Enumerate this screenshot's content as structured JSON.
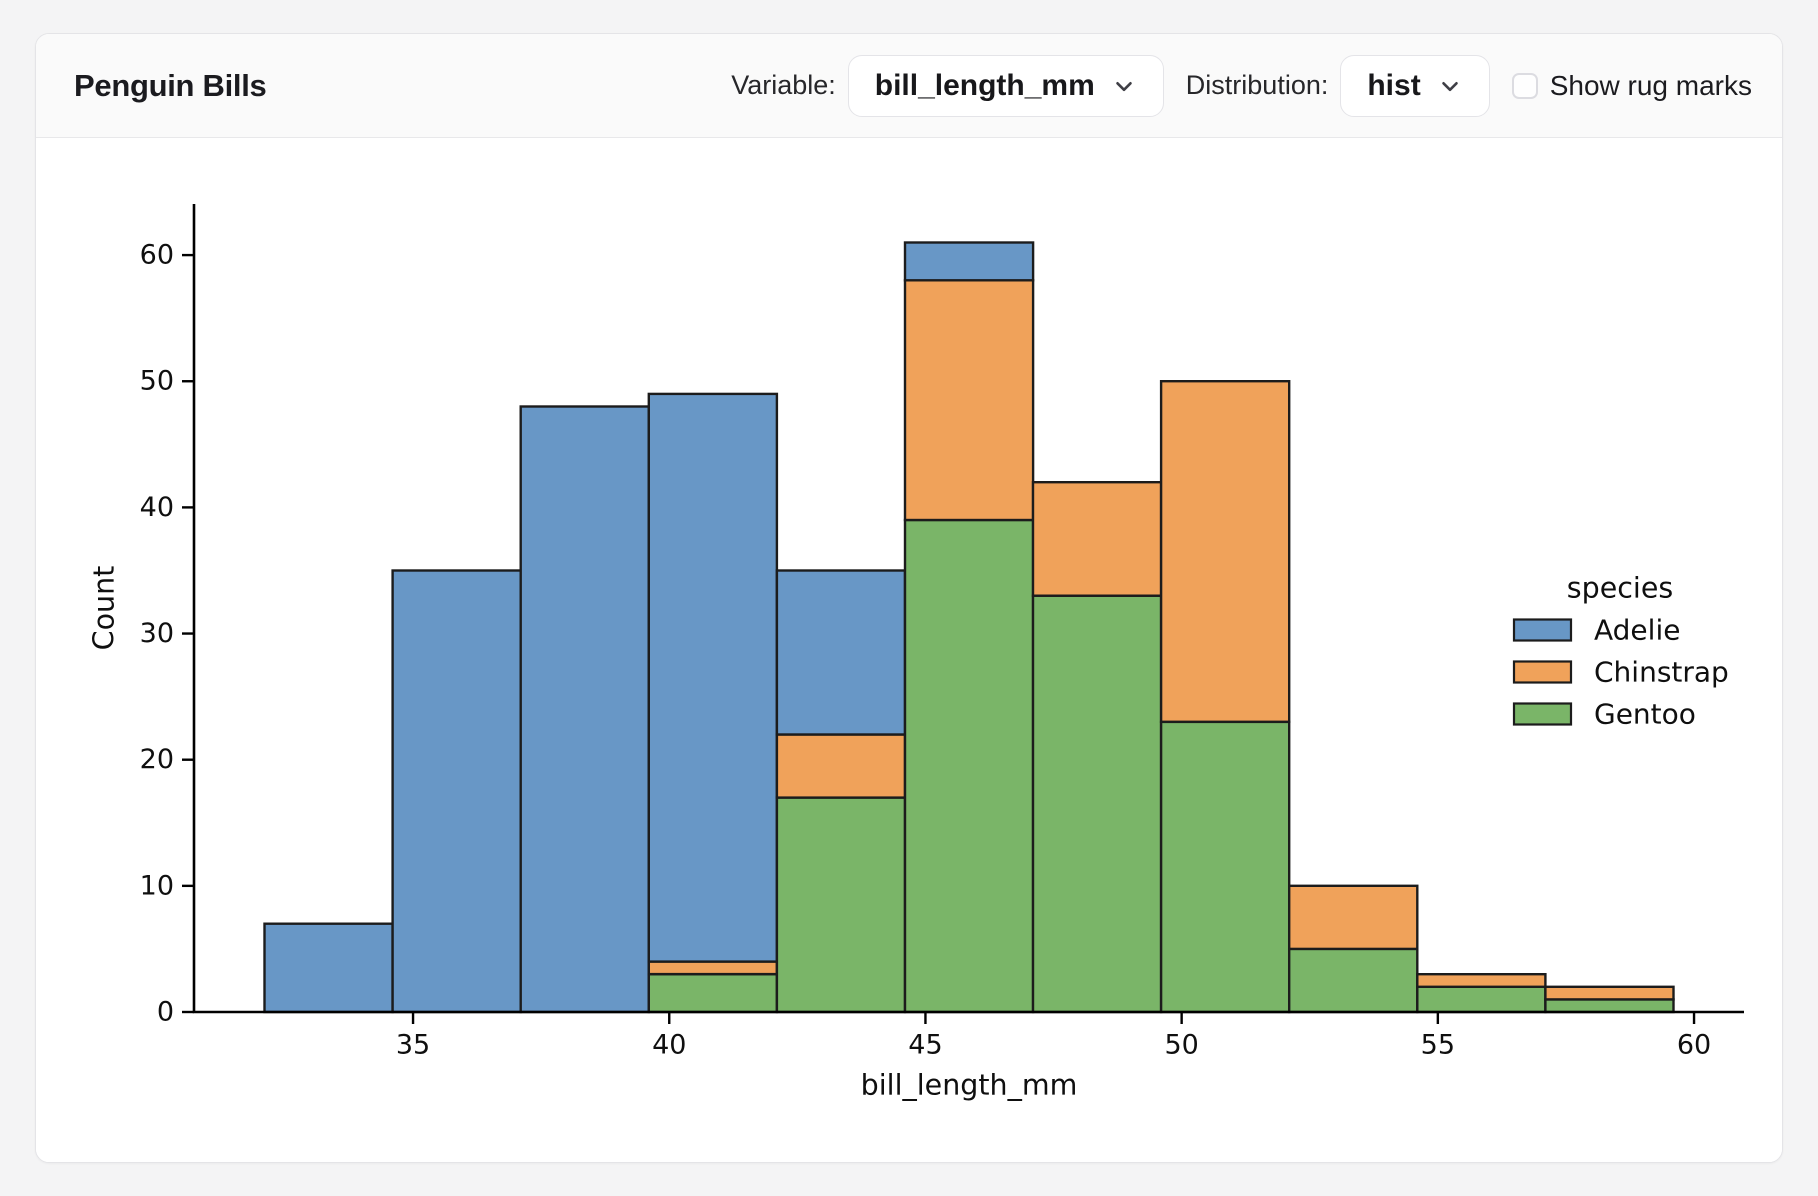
{
  "header": {
    "title": "Penguin Bills",
    "variable_label": "Variable:",
    "variable_value": "bill_length_mm",
    "distribution_label": "Distribution:",
    "distribution_value": "hist",
    "rug_label": "Show rug marks",
    "rug_checked": false
  },
  "theme": {
    "page_background": "#f4f4f5",
    "card_background": "#ffffff",
    "header_background": "#fafafa"
  },
  "chart_data": {
    "type": "bar",
    "subtype": "stacked-histogram",
    "xlabel": "bill_length_mm",
    "ylabel": "Count",
    "grid": false,
    "bin_edges": [
      32.1,
      34.6,
      37.1,
      39.6,
      42.1,
      44.6,
      47.1,
      49.6,
      52.1,
      54.6,
      57.1,
      59.6
    ],
    "series": [
      {
        "name": "Gentoo",
        "color": "#7ab568",
        "values": [
          0,
          0,
          0,
          3,
          17,
          39,
          33,
          23,
          5,
          2,
          1
        ]
      },
      {
        "name": "Chinstrap",
        "color": "#f0a25a",
        "values": [
          0,
          0,
          0,
          1,
          5,
          19,
          9,
          27,
          5,
          1,
          1
        ]
      },
      {
        "name": "Adelie",
        "color": "#6897c6",
        "values": [
          7,
          35,
          48,
          45,
          13,
          3,
          0,
          0,
          0,
          0,
          0
        ]
      }
    ],
    "bin_totals": [
      7,
      35,
      48,
      49,
      35,
      61,
      42,
      50,
      10,
      3,
      2
    ],
    "x_ticks": [
      35,
      40,
      45,
      50,
      55,
      60
    ],
    "y_ticks": [
      0,
      10,
      20,
      30,
      40,
      50,
      60
    ],
    "xlim": [
      30.725,
      60.975
    ],
    "ylim": [
      0,
      64.05
    ],
    "edge_color": "#1c1c1c",
    "axis_color": "#000000",
    "legend": {
      "title": "species",
      "entries": [
        "Adelie",
        "Chinstrap",
        "Gentoo"
      ],
      "position": "center-right"
    }
  }
}
